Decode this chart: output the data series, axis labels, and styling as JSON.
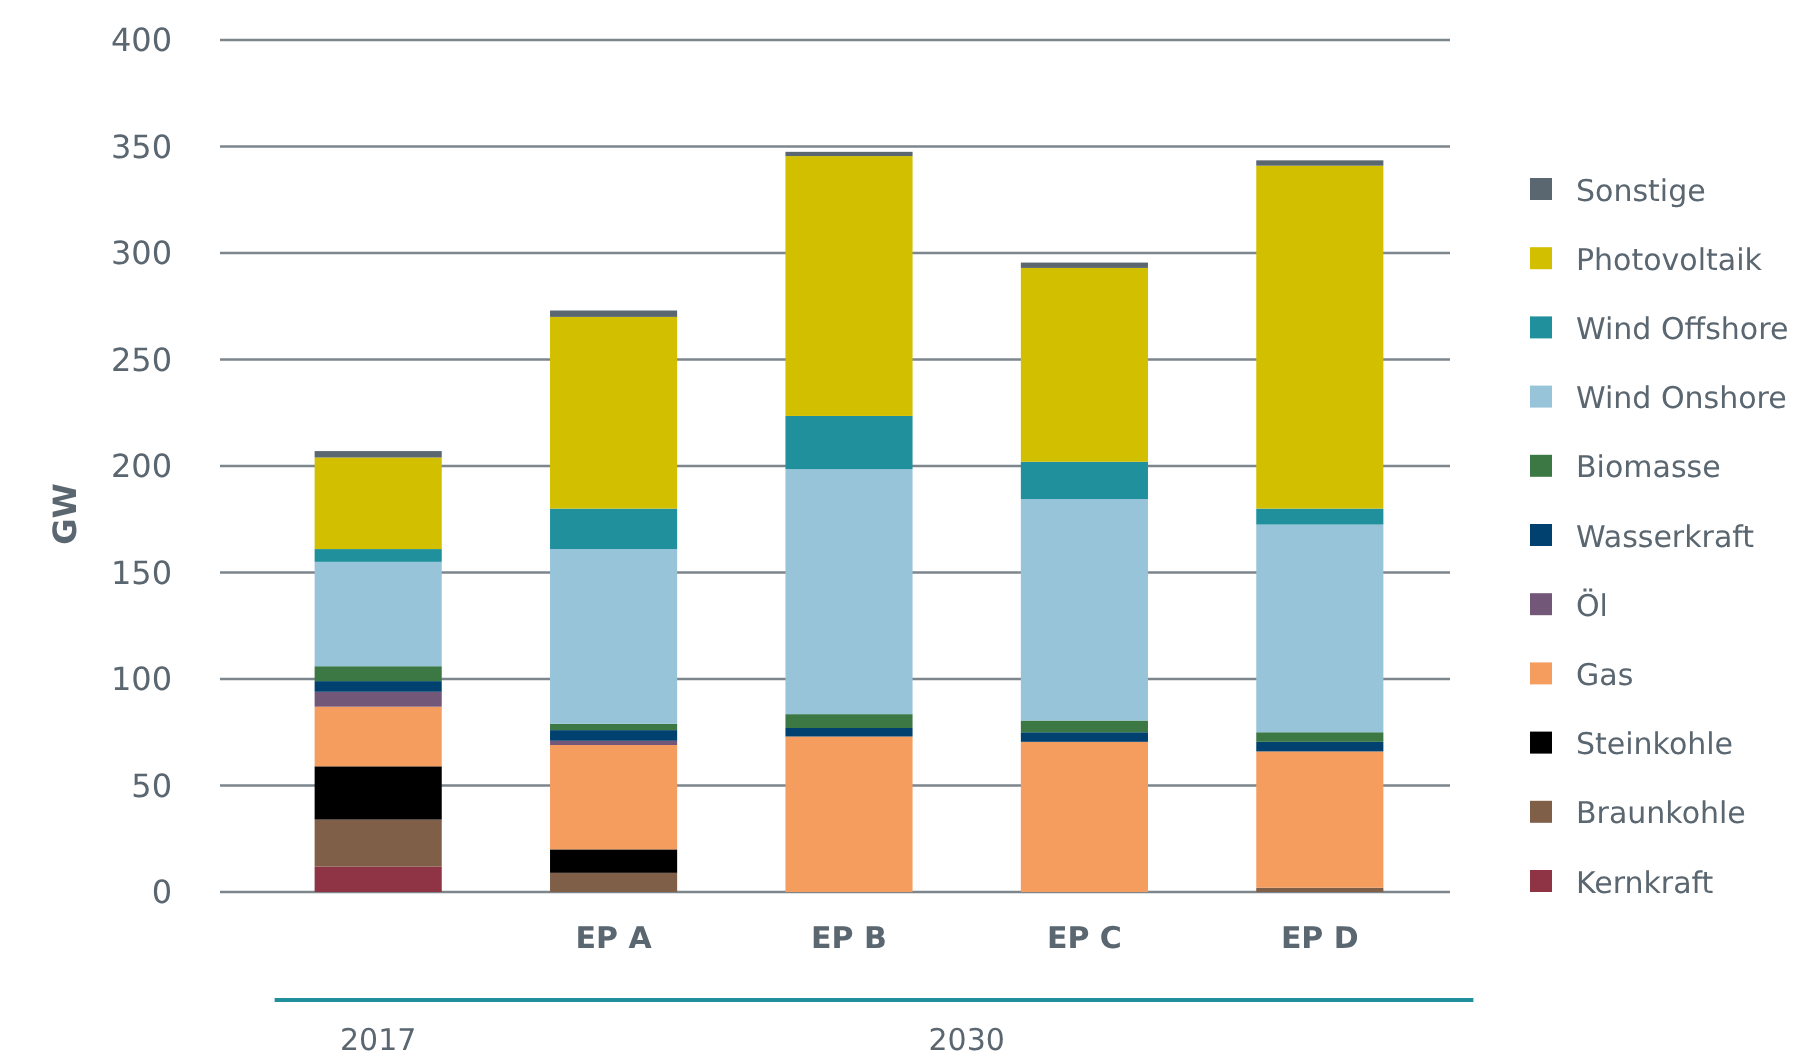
{
  "chart_data": {
    "type": "bar",
    "stacked": true,
    "ylabel": "GW",
    "categories": [
      null,
      "EP A",
      "EP B",
      "EP C",
      "EP D"
    ],
    "series": [
      {
        "name": "Kernkraft",
        "color": "#8e3444",
        "values": [
          12,
          0,
          0,
          0,
          0
        ]
      },
      {
        "name": "Braunkohle",
        "color": "#7f5f48",
        "values": [
          22,
          9,
          0,
          0,
          2
        ]
      },
      {
        "name": "Steinkohle",
        "color": "#000000",
        "values": [
          25,
          11,
          0,
          0,
          0
        ]
      },
      {
        "name": "Gas",
        "color": "#f59d5f",
        "values": [
          28,
          49,
          73,
          70.5,
          64
        ]
      },
      {
        "name": "Öl",
        "color": "#735779",
        "values": [
          7,
          2,
          0,
          0,
          0
        ]
      },
      {
        "name": "Wasserkraft",
        "color": "#00416f",
        "values": [
          5,
          5,
          4,
          4.5,
          4.5
        ]
      },
      {
        "name": "Biomasse",
        "color": "#3b7844",
        "values": [
          7,
          3,
          6.5,
          5.5,
          4.5
        ]
      },
      {
        "name": "Wind Onshore",
        "color": "#98c4da",
        "values": [
          49,
          82,
          115,
          104,
          97.5
        ]
      },
      {
        "name": "Wind Offshore",
        "color": "#21909d",
        "values": [
          6,
          19,
          25,
          17.5,
          7.5
        ]
      },
      {
        "name": "Photovoltaik",
        "color": "#d2bf00",
        "values": [
          43,
          90,
          122,
          91,
          161
        ]
      },
      {
        "name": "Sonstige",
        "color": "#5a6670",
        "values": [
          3,
          3,
          2,
          2.5,
          2.5
        ]
      }
    ],
    "ylim": [
      0,
      400
    ],
    "yticks": [
      0,
      50,
      100,
      150,
      200,
      250,
      300,
      350,
      400
    ],
    "grid": "y",
    "legend": "right",
    "annotations": [
      "2017",
      "2030"
    ]
  }
}
